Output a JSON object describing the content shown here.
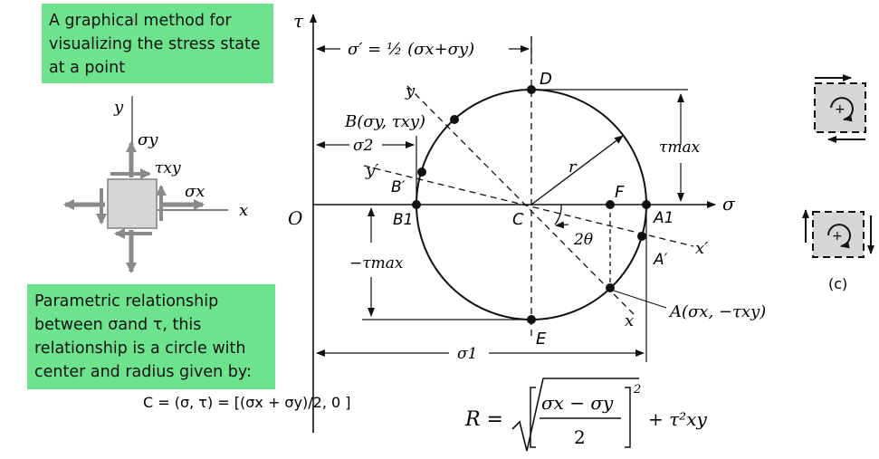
{
  "notes": {
    "top": "A graphical method for\nvisualizing the stress state\nat a point",
    "bottom": "Parametric relationship\nbetween σand τ, this\nrelationship is a circle with\ncenter and radius given by:"
  },
  "element": {
    "y": "y",
    "x": "x",
    "sigma_y": "σy",
    "tau_xy": "τxy",
    "sigma_x": "σx"
  },
  "axes": {
    "tau": "τ",
    "sigma": "σ",
    "origin": "O"
  },
  "dims": {
    "sigma_prime": "σ′ = ½ (σx+σy)",
    "sigma2": "σ2",
    "sigma1": "σ1",
    "tau_max": "τmax",
    "neg_tau_max": "−τmax"
  },
  "points": {
    "D": "D",
    "E": "E",
    "C": "C",
    "F": "F",
    "B": "B(σy, τxy)",
    "Bp": "B′",
    "B1": "B1",
    "A1": "A1",
    "Ap": "A′",
    "A": "A(σx, −τxy)",
    "y": "y",
    "yp": "y′",
    "x": "x",
    "xp": "x′",
    "r": "r",
    "angle": "2θ"
  },
  "formulas": {
    "center": "C = (σ, τ) = [(σx + σy)/2, 0 ]",
    "radius_lhs": "R =",
    "radius_num": "σx − σy",
    "radius_den": "2",
    "radius_exp": "2",
    "radius_tail": "+ τ²xy"
  },
  "figure_c": {
    "label": "(c)",
    "plus": "+"
  }
}
